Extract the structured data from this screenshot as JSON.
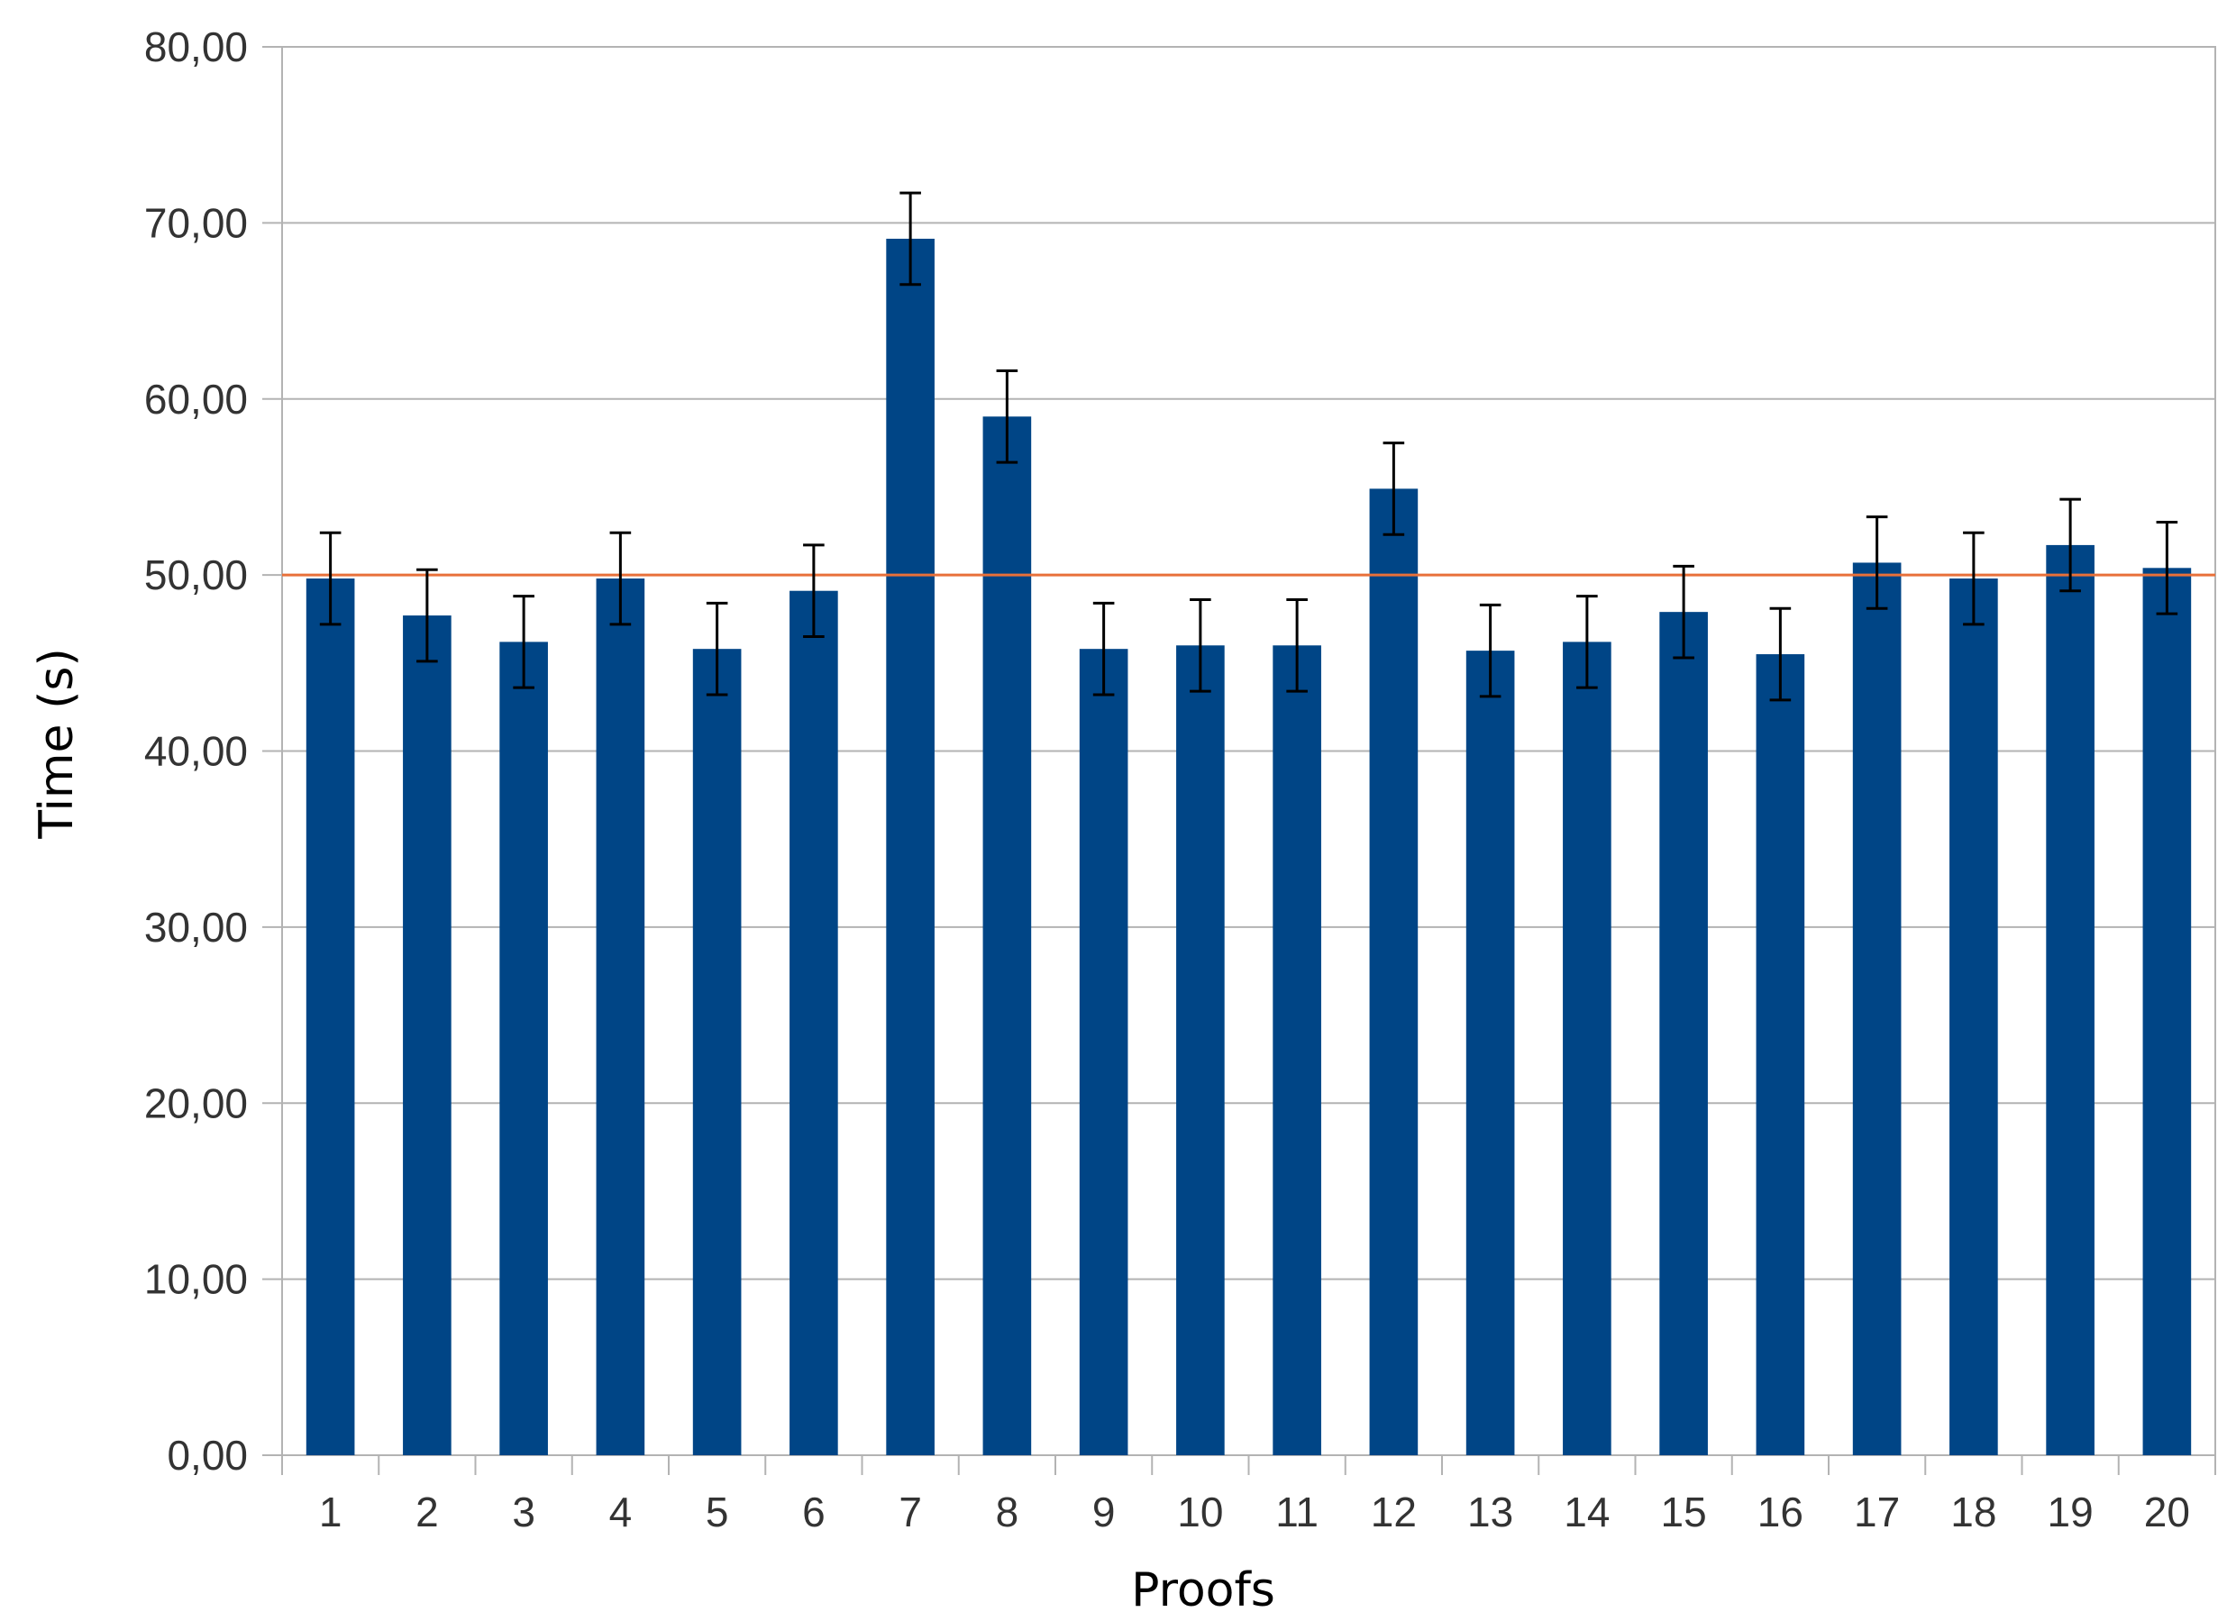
{
  "chart_data": {
    "type": "bar",
    "title": "",
    "xlabel": "Proofs",
    "ylabel": "Time (s)",
    "categories": [
      "1",
      "2",
      "3",
      "4",
      "5",
      "6",
      "7",
      "8",
      "9",
      "10",
      "11",
      "12",
      "13",
      "14",
      "15",
      "16",
      "17",
      "18",
      "19",
      "20"
    ],
    "series": [
      {
        "values": [
          49.8,
          47.7,
          46.2,
          49.8,
          45.8,
          49.1,
          69.1,
          59.0,
          45.8,
          46.0,
          46.0,
          54.9,
          45.7,
          46.2,
          47.9,
          45.5,
          50.7,
          49.8,
          51.7,
          50.4
        ],
        "error": [
          2.6,
          2.6,
          2.6,
          2.6,
          2.6,
          2.6,
          2.6,
          2.6,
          2.6,
          2.6,
          2.6,
          2.6,
          2.6,
          2.6,
          2.6,
          2.6,
          2.6,
          2.6,
          2.6,
          2.6
        ],
        "color": "#004586"
      }
    ],
    "reference_line": {
      "value": 50.0,
      "color": "#e8703a"
    },
    "ylim": [
      0,
      80
    ],
    "yticks": [
      0,
      10,
      20,
      30,
      40,
      50,
      60,
      70,
      80
    ],
    "ytick_labels": [
      "0,00",
      "10,00",
      "20,00",
      "30,00",
      "40,00",
      "50,00",
      "60,00",
      "70,00",
      "80,00"
    ],
    "grid": true,
    "legend": "none"
  }
}
